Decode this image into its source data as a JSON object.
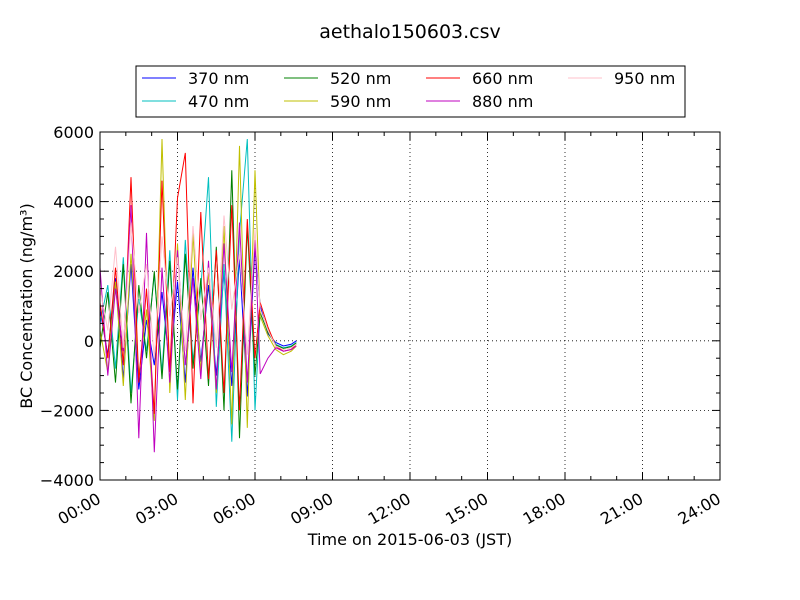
{
  "chart_data": {
    "type": "line",
    "title": "aethalo150603.csv",
    "xlabel": "Time on 2015-06-03 (JST)",
    "ylabel": "BC Concentration (ng/m³)",
    "ylim": [
      -4000,
      6000
    ],
    "xlim_hours": [
      0,
      24
    ],
    "x_unit": "hours since 00:00 JST",
    "xticks": [
      "00:00",
      "03:00",
      "06:00",
      "09:00",
      "12:00",
      "15:00",
      "18:00",
      "21:00",
      "24:00"
    ],
    "yticks": [
      "−4000",
      "−2000",
      "0",
      "2000",
      "4000",
      "6000"
    ],
    "grid": true,
    "legend_position": "top-center",
    "legend_columns": 4,
    "series": [
      {
        "name": "370 nm",
        "color": "#0000ff",
        "x": [
          0.0,
          0.3,
          0.6,
          0.9,
          1.2,
          1.5,
          1.8,
          2.1,
          2.4,
          2.7,
          3.0,
          3.3,
          3.6,
          3.9,
          4.2,
          4.5,
          4.8,
          5.1,
          5.4,
          5.7,
          6.0,
          6.2,
          6.5,
          6.8,
          7.1,
          7.4,
          7.6
        ],
        "y": [
          900,
          -400,
          1800,
          -1100,
          2200,
          -1400,
          600,
          -700,
          1400,
          -800,
          1700,
          -1200,
          2100,
          -600,
          1600,
          -1000,
          2000,
          -1300,
          2400,
          -1600,
          2700,
          1000,
          200,
          -50,
          -150,
          -100,
          0
        ]
      },
      {
        "name": "470 nm",
        "color": "#00bfbf",
        "x": [
          0.0,
          0.3,
          0.6,
          0.9,
          1.2,
          1.5,
          1.8,
          2.1,
          2.4,
          2.7,
          3.0,
          3.3,
          3.6,
          3.9,
          4.2,
          4.5,
          4.8,
          5.1,
          5.4,
          5.7,
          6.0,
          6.2,
          6.5,
          6.8,
          7.1,
          7.4,
          7.6
        ],
        "y": [
          500,
          1600,
          -800,
          2400,
          -1500,
          1200,
          -300,
          1900,
          -900,
          2600,
          -1700,
          2900,
          -600,
          1500,
          4700,
          -1900,
          2200,
          -2900,
          3100,
          5800,
          -2000,
          900,
          300,
          -100,
          -200,
          -150,
          -50
        ]
      },
      {
        "name": "520 nm",
        "color": "#008000",
        "x": [
          0.0,
          0.3,
          0.6,
          0.9,
          1.2,
          1.5,
          1.8,
          2.1,
          2.4,
          2.7,
          3.0,
          3.3,
          3.6,
          3.9,
          4.2,
          4.5,
          4.8,
          5.1,
          5.4,
          5.7,
          6.0,
          6.2,
          6.5,
          6.8,
          7.1,
          7.4,
          7.6
        ],
        "y": [
          -200,
          1400,
          -1200,
          2200,
          -1800,
          1600,
          -500,
          2000,
          -1100,
          2300,
          -1400,
          2500,
          -800,
          1800,
          -1300,
          2700,
          -2000,
          4900,
          -2800,
          3300,
          -1000,
          800,
          250,
          -120,
          -220,
          -170,
          -60
        ]
      },
      {
        "name": "590 nm",
        "color": "#bfbf00",
        "x": [
          0.0,
          0.3,
          0.6,
          0.9,
          1.2,
          1.5,
          1.8,
          2.1,
          2.4,
          2.7,
          3.0,
          3.3,
          3.6,
          3.9,
          4.2,
          4.5,
          4.8,
          5.1,
          5.4,
          5.7,
          6.0,
          6.2,
          6.5,
          6.8,
          7.1,
          7.4,
          7.6
        ],
        "y": [
          300,
          -900,
          1700,
          -1300,
          2500,
          -1000,
          900,
          -2300,
          5800,
          -1500,
          2800,
          -1700,
          3100,
          -900,
          2000,
          -1500,
          3300,
          -2400,
          5600,
          -2500,
          4900,
          700,
          150,
          -250,
          -400,
          -300,
          -150
        ]
      },
      {
        "name": "660 nm",
        "color": "#ff0000",
        "x": [
          0.0,
          0.3,
          0.6,
          0.9,
          1.2,
          1.5,
          1.8,
          2.1,
          2.4,
          2.7,
          3.0,
          3.3,
          3.6,
          3.9,
          4.2,
          4.5,
          4.8,
          5.1,
          5.4,
          5.7,
          6.0,
          6.2,
          6.5,
          6.8,
          7.1,
          7.4,
          7.6
        ],
        "y": [
          1100,
          -500,
          2100,
          -700,
          4700,
          -1200,
          1500,
          -2100,
          4600,
          -900,
          4100,
          5400,
          -1800,
          3700,
          -1100,
          2600,
          -1500,
          3900,
          -2000,
          3500,
          -500,
          1100,
          400,
          -150,
          -300,
          -250,
          -100
        ]
      },
      {
        "name": "880 nm",
        "color": "#bf00bf",
        "x": [
          0.0,
          0.3,
          0.6,
          0.9,
          1.2,
          1.5,
          1.8,
          2.1,
          2.4,
          2.7,
          3.0,
          3.3,
          3.6,
          3.9,
          4.2,
          4.5,
          4.8,
          5.1,
          5.4,
          5.7,
          6.0,
          6.2,
          6.5,
          6.8,
          7.1,
          7.4,
          7.6
        ],
        "y": [
          2100,
          -1000,
          1500,
          -300,
          3900,
          -2800,
          3100,
          -3200,
          2100,
          -1200,
          2600,
          -700,
          1800,
          -1100,
          2300,
          -1400,
          2800,
          -900,
          3400,
          -1200,
          2900,
          -950,
          -500,
          -200,
          -300,
          -250,
          -150
        ]
      },
      {
        "name": "950 nm",
        "color": "#ffc0cb",
        "x": [
          0.0,
          0.3,
          0.6,
          0.9,
          1.2,
          1.5,
          1.8,
          2.1,
          2.4,
          2.7,
          3.0,
          3.3,
          3.6,
          3.9,
          4.2,
          4.5,
          4.8,
          5.1,
          5.4,
          5.7,
          6.0,
          6.2,
          6.5,
          6.8,
          7.1,
          7.4,
          7.6
        ],
        "y": [
          1500,
          300,
          2700,
          -200,
          3400,
          800,
          2200,
          -500,
          3000,
          700,
          2400,
          -300,
          3300,
          600,
          2100,
          -200,
          3600,
          900,
          2500,
          -400,
          3200,
          900,
          300,
          -150,
          -250,
          -200,
          -100
        ]
      }
    ]
  }
}
